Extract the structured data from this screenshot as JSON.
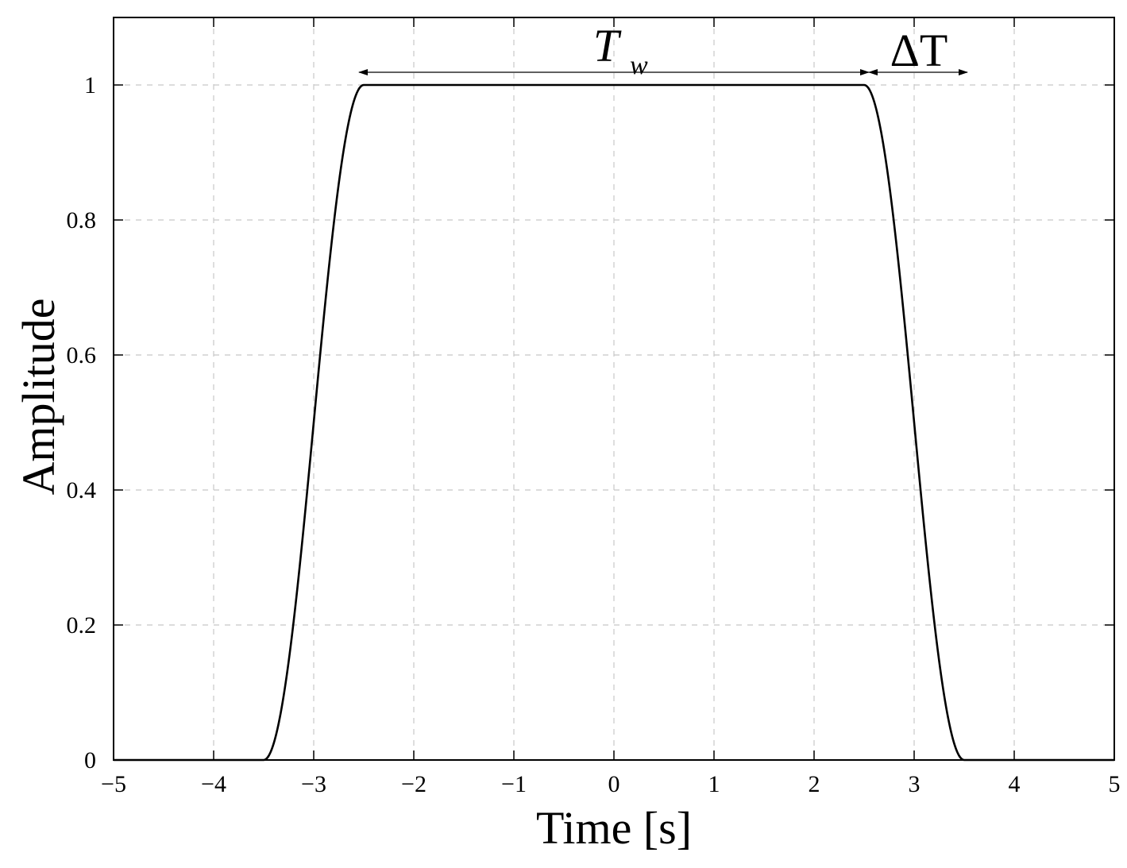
{
  "chart_data": {
    "type": "line",
    "title": "",
    "xlabel": "Time [s]",
    "ylabel": "Amplitude",
    "xlim": [
      -5,
      5
    ],
    "ylim": [
      0,
      1.1
    ],
    "x_ticks": [
      -5,
      -4,
      -3,
      -2,
      -1,
      0,
      1,
      2,
      3,
      4,
      5
    ],
    "x_tick_labels": [
      "−5",
      "−4",
      "−3",
      "−2",
      "−1",
      "0",
      "1",
      "2",
      "3",
      "4",
      "5"
    ],
    "y_ticks": [
      0,
      0.2,
      0.4,
      0.6,
      0.8,
      1
    ],
    "y_tick_labels": [
      "0",
      "0.2",
      "0.4",
      "0.6",
      "0.8",
      "1"
    ],
    "grid": true,
    "series": [
      {
        "shape": "raised-cosine window",
        "flat_region": [
          -2.5,
          2.5
        ],
        "rise": [
          -3.5,
          -2.5
        ],
        "fall": [
          2.5,
          3.5
        ],
        "points": [
          [
            -5,
            0
          ],
          [
            -3.5,
            0
          ],
          [
            -3.4,
            0.024
          ],
          [
            -3.3,
            0.095
          ],
          [
            -3.2,
            0.206
          ],
          [
            -3.1,
            0.345
          ],
          [
            -3.0,
            0.5
          ],
          [
            -2.9,
            0.655
          ],
          [
            -2.8,
            0.794
          ],
          [
            -2.7,
            0.905
          ],
          [
            -2.6,
            0.976
          ],
          [
            -2.5,
            1
          ],
          [
            2.5,
            1
          ],
          [
            2.6,
            0.976
          ],
          [
            2.7,
            0.905
          ],
          [
            2.8,
            0.794
          ],
          [
            2.9,
            0.655
          ],
          [
            3.0,
            0.5
          ],
          [
            3.1,
            0.345
          ],
          [
            3.2,
            0.206
          ],
          [
            3.3,
            0.095
          ],
          [
            3.4,
            0.024
          ],
          [
            3.5,
            0
          ],
          [
            5,
            0
          ]
        ]
      }
    ],
    "annotations": [
      {
        "label": "T",
        "subscript": "w",
        "span": [
          -2.5,
          2.5
        ],
        "y": 1.02
      },
      {
        "label": "ΔT",
        "span": [
          2.5,
          3.5
        ],
        "y": 1.02
      }
    ]
  }
}
